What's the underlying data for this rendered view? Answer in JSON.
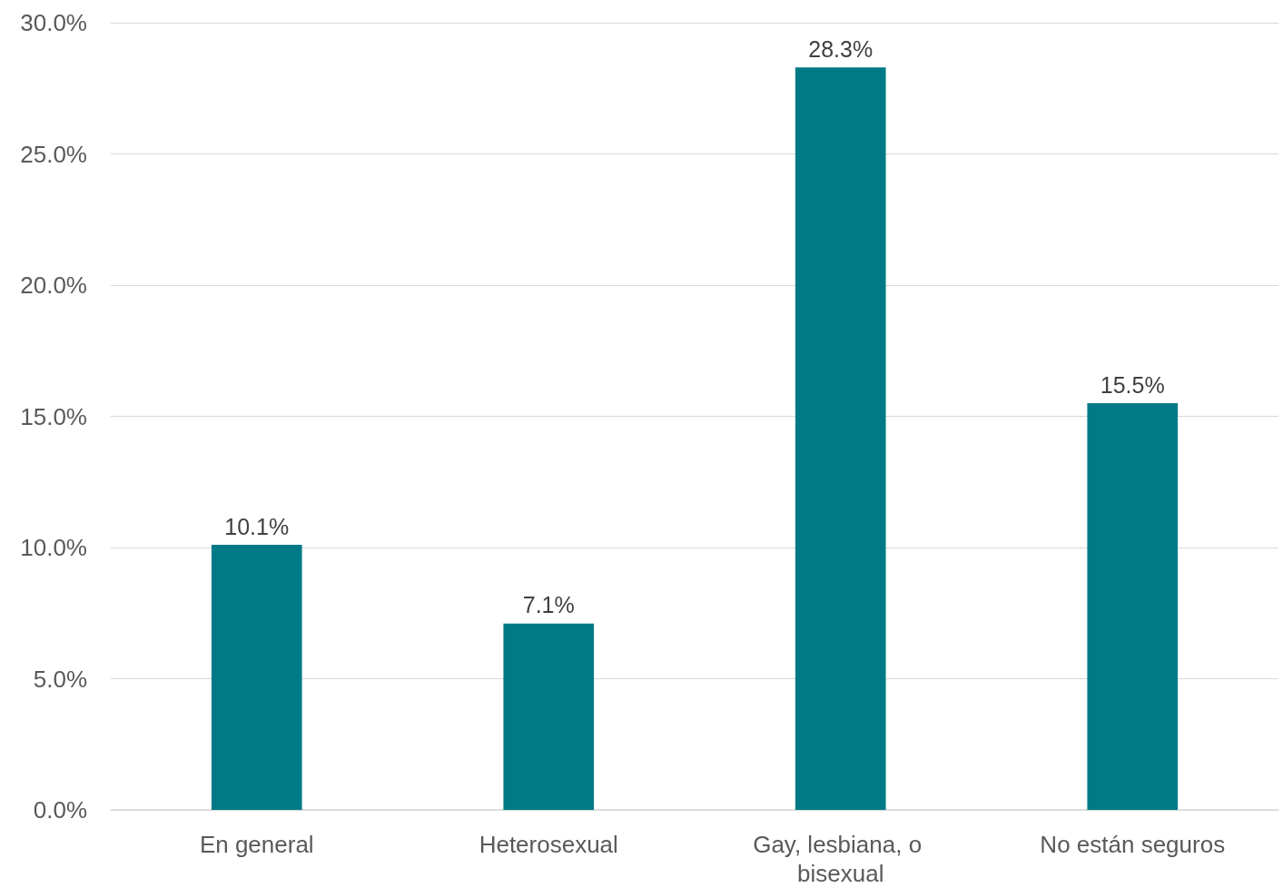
{
  "chart_data": {
    "type": "bar",
    "categories": [
      "En general",
      "Heterosexual",
      "Gay, lesbiana, o bisexual",
      "No están seguros"
    ],
    "values": [
      10.1,
      7.1,
      28.3,
      15.5
    ],
    "value_labels": [
      "10.1%",
      "7.1%",
      "28.3%",
      "15.5%"
    ],
    "color": "#007a87",
    "ylim": [
      0,
      30
    ],
    "yticks": [
      {
        "value": 0,
        "label": "0.0%"
      },
      {
        "value": 5,
        "label": "5.0%"
      },
      {
        "value": 10,
        "label": "10.0%"
      },
      {
        "value": 15,
        "label": "15.0%"
      },
      {
        "value": 20,
        "label": "20.0%"
      },
      {
        "value": 25,
        "label": "25.0%"
      },
      {
        "value": 30,
        "label": "30.0%"
      }
    ],
    "grid": true
  }
}
